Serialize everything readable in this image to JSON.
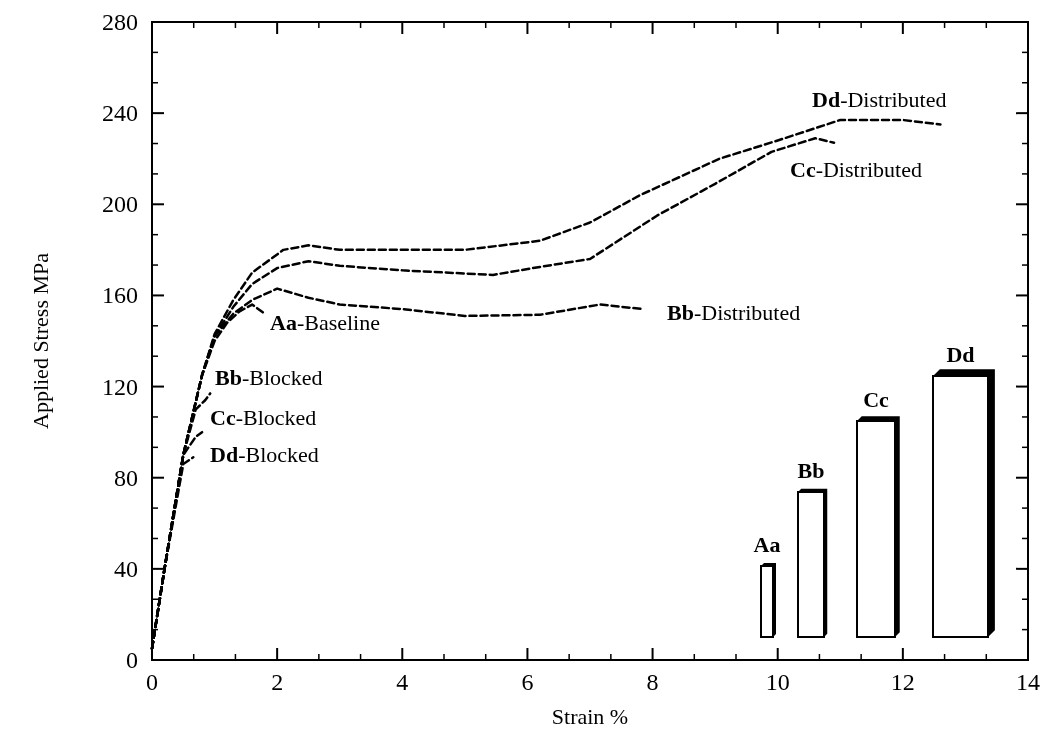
{
  "chart_data": {
    "type": "line",
    "xlabel": "Strain  %",
    "ylabel": "Applied Stress  MPa",
    "xlim": [
      0,
      14
    ],
    "ylim": [
      0,
      280
    ],
    "xticks": [
      0,
      2,
      4,
      6,
      8,
      10,
      12,
      14
    ],
    "yticks": [
      0,
      40,
      80,
      120,
      160,
      200,
      240,
      280
    ],
    "line_style": "dashed",
    "series": [
      {
        "name": "Aa-Baseline",
        "color": "#000000",
        "x": [
          0,
          0.2,
          0.5,
          0.8,
          1.0,
          1.2,
          1.4,
          1.6,
          1.8
        ],
        "values": [
          5,
          40,
          90,
          125,
          140,
          148,
          153,
          156,
          152
        ]
      },
      {
        "name": "Bb-Blocked",
        "color": "#000000",
        "x": [
          0,
          0.2,
          0.5,
          0.7,
          0.85,
          0.93
        ],
        "values": [
          5,
          40,
          90,
          110,
          114,
          117
        ]
      },
      {
        "name": "Cc-Blocked",
        "color": "#000000",
        "x": [
          0,
          0.2,
          0.5,
          0.7,
          0.8
        ],
        "values": [
          5,
          40,
          90,
          98,
          100
        ]
      },
      {
        "name": "Dd-Blocked",
        "color": "#000000",
        "x": [
          0,
          0.2,
          0.5,
          0.66
        ],
        "values": [
          5,
          40,
          86,
          89
        ]
      },
      {
        "name": "Bb-Distributed",
        "color": "#000000",
        "x": [
          0,
          0.2,
          0.5,
          0.8,
          1.0,
          1.3,
          1.6,
          2.0,
          2.5,
          3.0,
          4.0,
          5.0,
          6.2,
          7.16,
          7.85
        ],
        "values": [
          5,
          40,
          90,
          125,
          142,
          152,
          158,
          163,
          159,
          156,
          154,
          151,
          151.5,
          156,
          154
        ]
      },
      {
        "name": "Cc-Distributed",
        "color": "#000000",
        "x": [
          0,
          0.2,
          0.5,
          0.8,
          1.0,
          1.3,
          1.6,
          2.0,
          2.5,
          3.0,
          4.0,
          5.45,
          6.2,
          7.0,
          8.07,
          9.0,
          9.9,
          10.6,
          10.9
        ],
        "values": [
          5,
          40,
          90,
          125,
          142,
          155,
          165,
          172,
          175,
          173,
          171,
          169,
          172.5,
          176,
          195,
          209,
          223,
          229,
          227
        ]
      },
      {
        "name": "Dd-Distributed",
        "color": "#000000",
        "x": [
          0,
          0.2,
          0.5,
          0.8,
          1.0,
          1.3,
          1.6,
          2.1,
          2.5,
          3.0,
          4.0,
          5.0,
          6.2,
          7.0,
          7.8,
          9.07,
          10.0,
          11.0,
          12.0,
          12.6
        ],
        "values": [
          5,
          40,
          90,
          125,
          143,
          158,
          170,
          180,
          182,
          180,
          180,
          180,
          184,
          192,
          204,
          220,
          228,
          237,
          237,
          235
        ]
      }
    ],
    "annotations": [
      "Aa",
      "Bb",
      "Cc",
      "Dd"
    ]
  }
}
